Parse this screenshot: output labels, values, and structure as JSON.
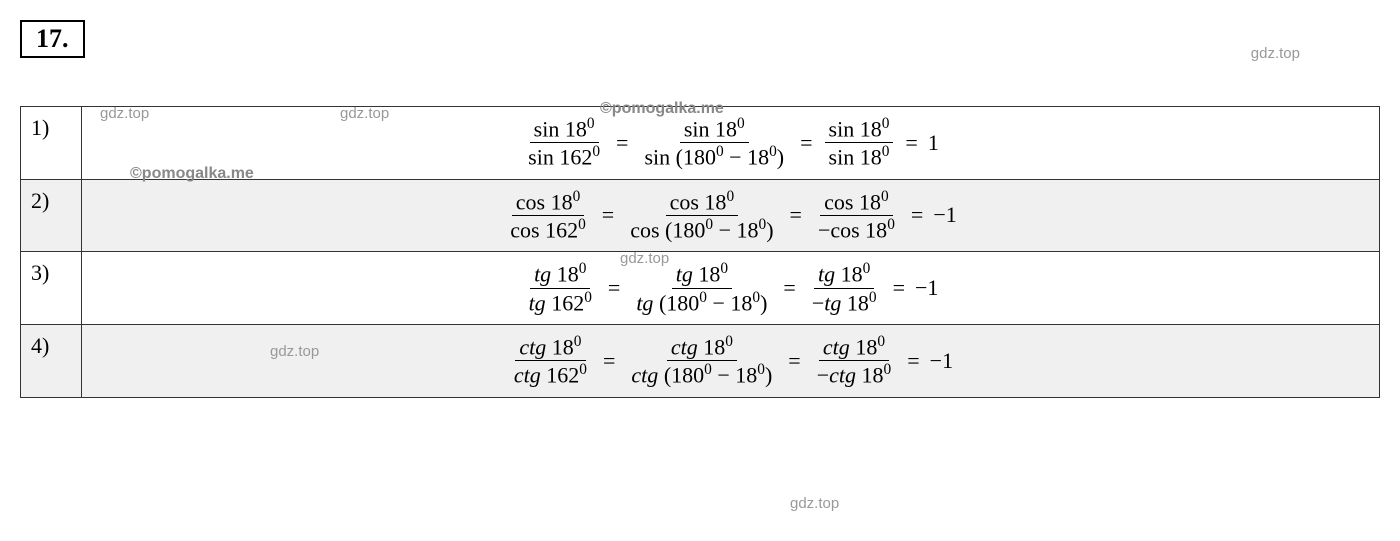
{
  "problem_number": "17.",
  "watermarks": {
    "gdz_top": "gdz.top",
    "pomogalka": "©pomogalka.me"
  },
  "rows": [
    {
      "index": "1)",
      "shaded": false,
      "func": "sin",
      "angle1": "18",
      "angle2": "162",
      "reduction": "180",
      "sign": "",
      "result": "1"
    },
    {
      "index": "2)",
      "shaded": true,
      "func": "cos",
      "angle1": "18",
      "angle2": "162",
      "reduction": "180",
      "sign": "−",
      "result": "−1"
    },
    {
      "index": "3)",
      "shaded": false,
      "func": "tg",
      "angle1": "18",
      "angle2": "162",
      "reduction": "180",
      "sign": "−",
      "result": "−1"
    },
    {
      "index": "4)",
      "shaded": true,
      "func": "ctg",
      "angle1": "18",
      "angle2": "162",
      "reduction": "180",
      "sign": "−",
      "result": "−1"
    }
  ],
  "styling": {
    "border_color": "#333333",
    "shaded_bg": "#f0f0f0",
    "watermark_color": "#999999",
    "font_family": "Times New Roman",
    "number_box_border": "#000000"
  }
}
